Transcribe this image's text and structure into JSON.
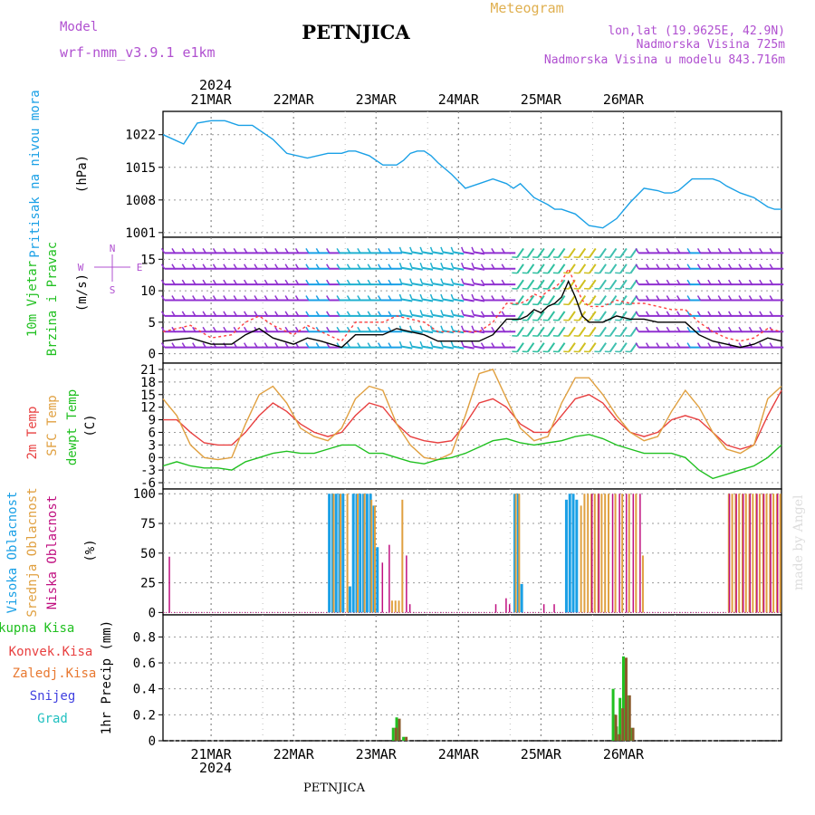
{
  "header": {
    "model_label": "Model",
    "model_name": "wrf-nmm_v3.9.1 e1km",
    "title": "PETNJICA",
    "meteogram": "Meteogram",
    "lonlat": "lon,lat (19.9625E, 42.9N)",
    "elevation": "Nadmorska Visina 725m",
    "model_elevation": "Nadmorska Visina u modelu 843.716m",
    "year_top": "2024",
    "year_bottom": "2024",
    "footer_title": "PETNJICA",
    "watermark": "made by Angel"
  },
  "colors": {
    "pressure": "#1aa0e6",
    "wind_speed": "#000000",
    "wind_gust": "#ff4040",
    "temp_2m": "#e84040",
    "temp_sfc": "#e0a040",
    "dewpoint": "#20c020",
    "cloud_high": "#1aa0e6",
    "cloud_mid": "#e0a040",
    "cloud_low": "#c01080",
    "precip_total": "#20c020",
    "precip_conv": "#e84040",
    "precip_frz": "#e87830",
    "snow": "#4040e0",
    "graupel": "#20c0c0",
    "label_purple": "#b050d0"
  },
  "chart_data": [
    {
      "type": "line",
      "panel": "pressure",
      "labels": [
        "Pritisak na nivou mora",
        "(hPa)"
      ],
      "x_ticks": [
        "21MAR",
        "22MAR",
        "23MAR",
        "24MAR",
        "25MAR",
        "26MAR"
      ],
      "xlim_hours": [
        -14,
        166
      ],
      "yticks": [
        1001,
        1008,
        1015,
        1022
      ],
      "ylim": [
        1000,
        1027
      ],
      "series": [
        {
          "x": [
            -14,
            -8,
            -4,
            0,
            4,
            8,
            12,
            18,
            22,
            28,
            34,
            38,
            40,
            42,
            46,
            50,
            54,
            56,
            58,
            60,
            62,
            64,
            66,
            70,
            74,
            78,
            82,
            86,
            88,
            90,
            94,
            98,
            100,
            102,
            106,
            110,
            114,
            118,
            122,
            126,
            130,
            132,
            134,
            136,
            140,
            142,
            144,
            146,
            148,
            150,
            154,
            158,
            162,
            164,
            166
          ],
          "y": [
            1022,
            1020,
            1024.5,
            1025,
            1025,
            1024,
            1024,
            1021,
            1018,
            1017,
            1018,
            1018,
            1018.5,
            1018.5,
            1017.5,
            1015.5,
            1015.5,
            1016.5,
            1018,
            1018.5,
            1018.5,
            1017.5,
            1016,
            1013.5,
            1010.5,
            1011.5,
            1012.5,
            1011.5,
            1010.5,
            1011.5,
            1008.5,
            1007,
            1006,
            1006,
            1005,
            1002.5,
            1002,
            1004,
            1007.5,
            1010.5,
            1010,
            1009.5,
            1009.5,
            1010,
            1012.5,
            1012.5,
            1012.5,
            1012.5,
            1012,
            1011,
            1009.5,
            1008.5,
            1006.5,
            1006,
            1006
          ]
        }
      ]
    },
    {
      "type": "line",
      "panel": "wind",
      "labels": [
        "10m Vjetar",
        "Brzina i Pravac",
        "(m/s)"
      ],
      "compass": [
        "N",
        "E",
        "W",
        "S"
      ],
      "yticks": [
        0,
        5,
        10,
        15
      ],
      "ylim": [
        -1.5,
        18.5
      ],
      "series": [
        {
          "name": "speed",
          "x": [
            -14,
            -6,
            0,
            6,
            10,
            14,
            18,
            24,
            28,
            32,
            38,
            42,
            46,
            50,
            54,
            58,
            62,
            66,
            70,
            74,
            78,
            82,
            86,
            90,
            92,
            94,
            96,
            98,
            100,
            102,
            104,
            106,
            108,
            110,
            114,
            118,
            122,
            126,
            130,
            134,
            138,
            142,
            146,
            150,
            154,
            158,
            162,
            166
          ],
          "y": [
            2,
            2.5,
            1.5,
            1.5,
            3,
            4,
            2.5,
            1.5,
            2.5,
            2,
            1,
            3,
            3,
            3,
            4,
            3.5,
            3,
            2,
            2,
            2,
            2,
            3,
            5.5,
            5.5,
            6,
            7,
            6.5,
            7.5,
            8,
            9,
            11.5,
            9,
            6,
            5,
            5,
            6,
            5.5,
            5.5,
            5,
            5,
            5,
            3,
            2,
            1.5,
            1,
            1.5,
            2.5,
            2
          ]
        },
        {
          "name": "gust",
          "x": [
            -14,
            -6,
            0,
            6,
            10,
            14,
            18,
            24,
            28,
            32,
            38,
            42,
            46,
            50,
            54,
            58,
            62,
            66,
            70,
            74,
            78,
            82,
            86,
            90,
            92,
            94,
            96,
            98,
            100,
            102,
            104,
            106,
            108,
            110,
            114,
            118,
            122,
            126,
            130,
            134,
            138,
            142,
            146,
            150,
            154,
            158,
            162,
            166
          ],
          "y": [
            3.5,
            4.5,
            2.5,
            3,
            5,
            6,
            4.5,
            3,
            4.5,
            3.5,
            2,
            5,
            5,
            5,
            6,
            5.5,
            5,
            3.5,
            3.5,
            3.5,
            3.5,
            5,
            8,
            8,
            8.5,
            9.5,
            9,
            10,
            10.5,
            11.5,
            13.5,
            11,
            8.5,
            7.5,
            7.5,
            8.5,
            8,
            8,
            7.5,
            7,
            7,
            5,
            3.5,
            2.5,
            2,
            2.5,
            4,
            3.5
          ]
        }
      ]
    },
    {
      "type": "line",
      "panel": "temperature",
      "labels": [
        "2m Temp",
        "SFC Temp",
        "dewpt Temp",
        "(C)"
      ],
      "yticks": [
        -6,
        -3,
        0,
        3,
        6,
        9,
        12,
        15,
        18,
        21
      ],
      "ylim": [
        -7.5,
        22.5
      ],
      "series": [
        {
          "name": "2m Temp",
          "x": [
            -14,
            -10,
            -6,
            -2,
            2,
            6,
            10,
            14,
            18,
            22,
            26,
            30,
            34,
            38,
            42,
            46,
            50,
            54,
            58,
            62,
            66,
            70,
            74,
            78,
            82,
            86,
            90,
            94,
            98,
            102,
            106,
            110,
            114,
            118,
            122,
            126,
            130,
            134,
            138,
            142,
            146,
            150,
            154,
            158,
            162,
            166
          ],
          "y": [
            9,
            9,
            6,
            3.5,
            3,
            3,
            6,
            10,
            13,
            11,
            8,
            6,
            5,
            6,
            10,
            13,
            12,
            8,
            5,
            4,
            3.5,
            4,
            8,
            13,
            14,
            12,
            8,
            6,
            6,
            10,
            14,
            15,
            13,
            9,
            6,
            5,
            6,
            9,
            10,
            9,
            6,
            3,
            2,
            3,
            10,
            16
          ]
        },
        {
          "name": "SFC Temp",
          "x": [
            -14,
            -10,
            -6,
            -2,
            2,
            6,
            10,
            14,
            18,
            22,
            26,
            30,
            34,
            38,
            42,
            46,
            50,
            54,
            58,
            62,
            66,
            70,
            74,
            78,
            82,
            86,
            90,
            94,
            98,
            102,
            106,
            110,
            114,
            118,
            122,
            126,
            130,
            134,
            138,
            142,
            146,
            150,
            154,
            158,
            162,
            166
          ],
          "y": [
            14,
            10,
            3,
            0,
            -0.5,
            0,
            8,
            15,
            17,
            13,
            7,
            5,
            4,
            7,
            14,
            17,
            16,
            8,
            3,
            0,
            -0.5,
            1,
            10,
            20,
            21,
            14,
            7,
            4,
            5,
            13,
            19,
            19,
            15,
            10,
            6,
            4,
            5,
            11,
            16,
            12,
            6,
            2,
            1,
            3,
            14,
            17
          ]
        },
        {
          "name": "dewpt Temp",
          "x": [
            -14,
            -10,
            -6,
            -2,
            2,
            6,
            10,
            14,
            18,
            22,
            26,
            30,
            34,
            38,
            42,
            46,
            50,
            54,
            58,
            62,
            66,
            70,
            74,
            78,
            82,
            86,
            90,
            94,
            98,
            102,
            106,
            110,
            114,
            118,
            122,
            126,
            130,
            134,
            138,
            142,
            146,
            150,
            154,
            158,
            162,
            166
          ],
          "y": [
            -2,
            -1,
            -2,
            -2.5,
            -2.5,
            -3,
            -1,
            0,
            1,
            1.5,
            1,
            1,
            2,
            3,
            3,
            1,
            1,
            0,
            -1,
            -1.5,
            -0.5,
            0,
            1,
            2.5,
            4,
            4.5,
            3.5,
            3,
            3.5,
            4,
            5,
            5.5,
            4.5,
            3,
            2,
            1,
            1,
            1,
            0,
            -3,
            -5,
            -4,
            -3,
            -2,
            0,
            3
          ]
        }
      ]
    },
    {
      "type": "bar",
      "panel": "cloud",
      "labels": [
        "Visoka Oblacnost",
        "Srednja Oblacnost",
        "Niska Oblacnost",
        "(%)"
      ],
      "yticks": [
        0,
        25,
        50,
        75,
        100
      ],
      "ylim": [
        -2,
        104
      ],
      "series": [
        {
          "name": "Visoka Oblacnost",
          "x": [
            34,
            35,
            36,
            37,
            38,
            40,
            41,
            42,
            43,
            44,
            45,
            46,
            47,
            48,
            88,
            89,
            90,
            103,
            104,
            105,
            106
          ],
          "values": [
            100,
            100,
            100,
            100,
            100,
            22,
            100,
            100,
            100,
            100,
            100,
            100,
            90,
            55,
            100,
            100,
            24,
            95,
            100,
            100,
            95
          ]
        },
        {
          "name": "Srednja Oblacnost",
          "x": [
            35,
            37,
            39,
            42,
            44,
            46,
            47,
            52,
            53,
            54,
            55,
            88,
            89,
            107,
            108,
            109,
            110,
            111,
            112,
            113,
            114,
            115,
            117,
            119,
            121,
            123,
            125,
            150,
            151,
            152,
            153,
            154,
            155,
            156,
            157,
            158,
            159,
            160,
            161,
            162,
            163,
            164,
            165
          ],
          "values": [
            100,
            100,
            100,
            100,
            100,
            95,
            90,
            10,
            10,
            10,
            95,
            100,
            100,
            90,
            100,
            100,
            100,
            100,
            100,
            100,
            100,
            100,
            100,
            100,
            100,
            100,
            48,
            100,
            100,
            100,
            100,
            100,
            100,
            100,
            100,
            100,
            100,
            100,
            100,
            100,
            100,
            100,
            100
          ]
        },
        {
          "name": "Niska Oblacnost",
          "x": [
            -13,
            49,
            51,
            56,
            57,
            82,
            85,
            86,
            96,
            99,
            110,
            112,
            116,
            118,
            120,
            122,
            124,
            150,
            152,
            154,
            156,
            158,
            160,
            162,
            164
          ],
          "values": [
            47,
            42,
            57,
            48,
            7,
            7,
            12,
            7,
            7,
            7,
            100,
            100,
            100,
            100,
            100,
            100,
            100,
            100,
            100,
            100,
            100,
            100,
            100,
            100,
            100
          ]
        }
      ]
    },
    {
      "type": "bar",
      "panel": "precip",
      "labels": [
        "Ukupna Kisa",
        "Konvek.Kisa",
        "Zaledj.Kisa",
        "Snijeg",
        "Grad",
        "1hr Precip (mm)"
      ],
      "yticks": [
        0,
        0.2,
        0.4,
        0.6,
        0.8
      ],
      "ylim": [
        0,
        0.97
      ],
      "series": [
        {
          "name": "Ukupna Kisa",
          "x": [
            53,
            54,
            56,
            117,
            118,
            119,
            120,
            121,
            122,
            123
          ],
          "values": [
            0.1,
            0.18,
            0.03,
            0.4,
            0.11,
            0.33,
            0.65,
            0.35,
            0.1,
            0
          ]
        },
        {
          "name": "Konvek.Kisa",
          "x": [
            53,
            54,
            56,
            117,
            118,
            119,
            120,
            121,
            122
          ],
          "values": [
            0.1,
            0.17,
            0.03,
            0.2,
            0.05,
            0.25,
            0.64,
            0.35,
            0.1
          ]
        }
      ]
    }
  ]
}
